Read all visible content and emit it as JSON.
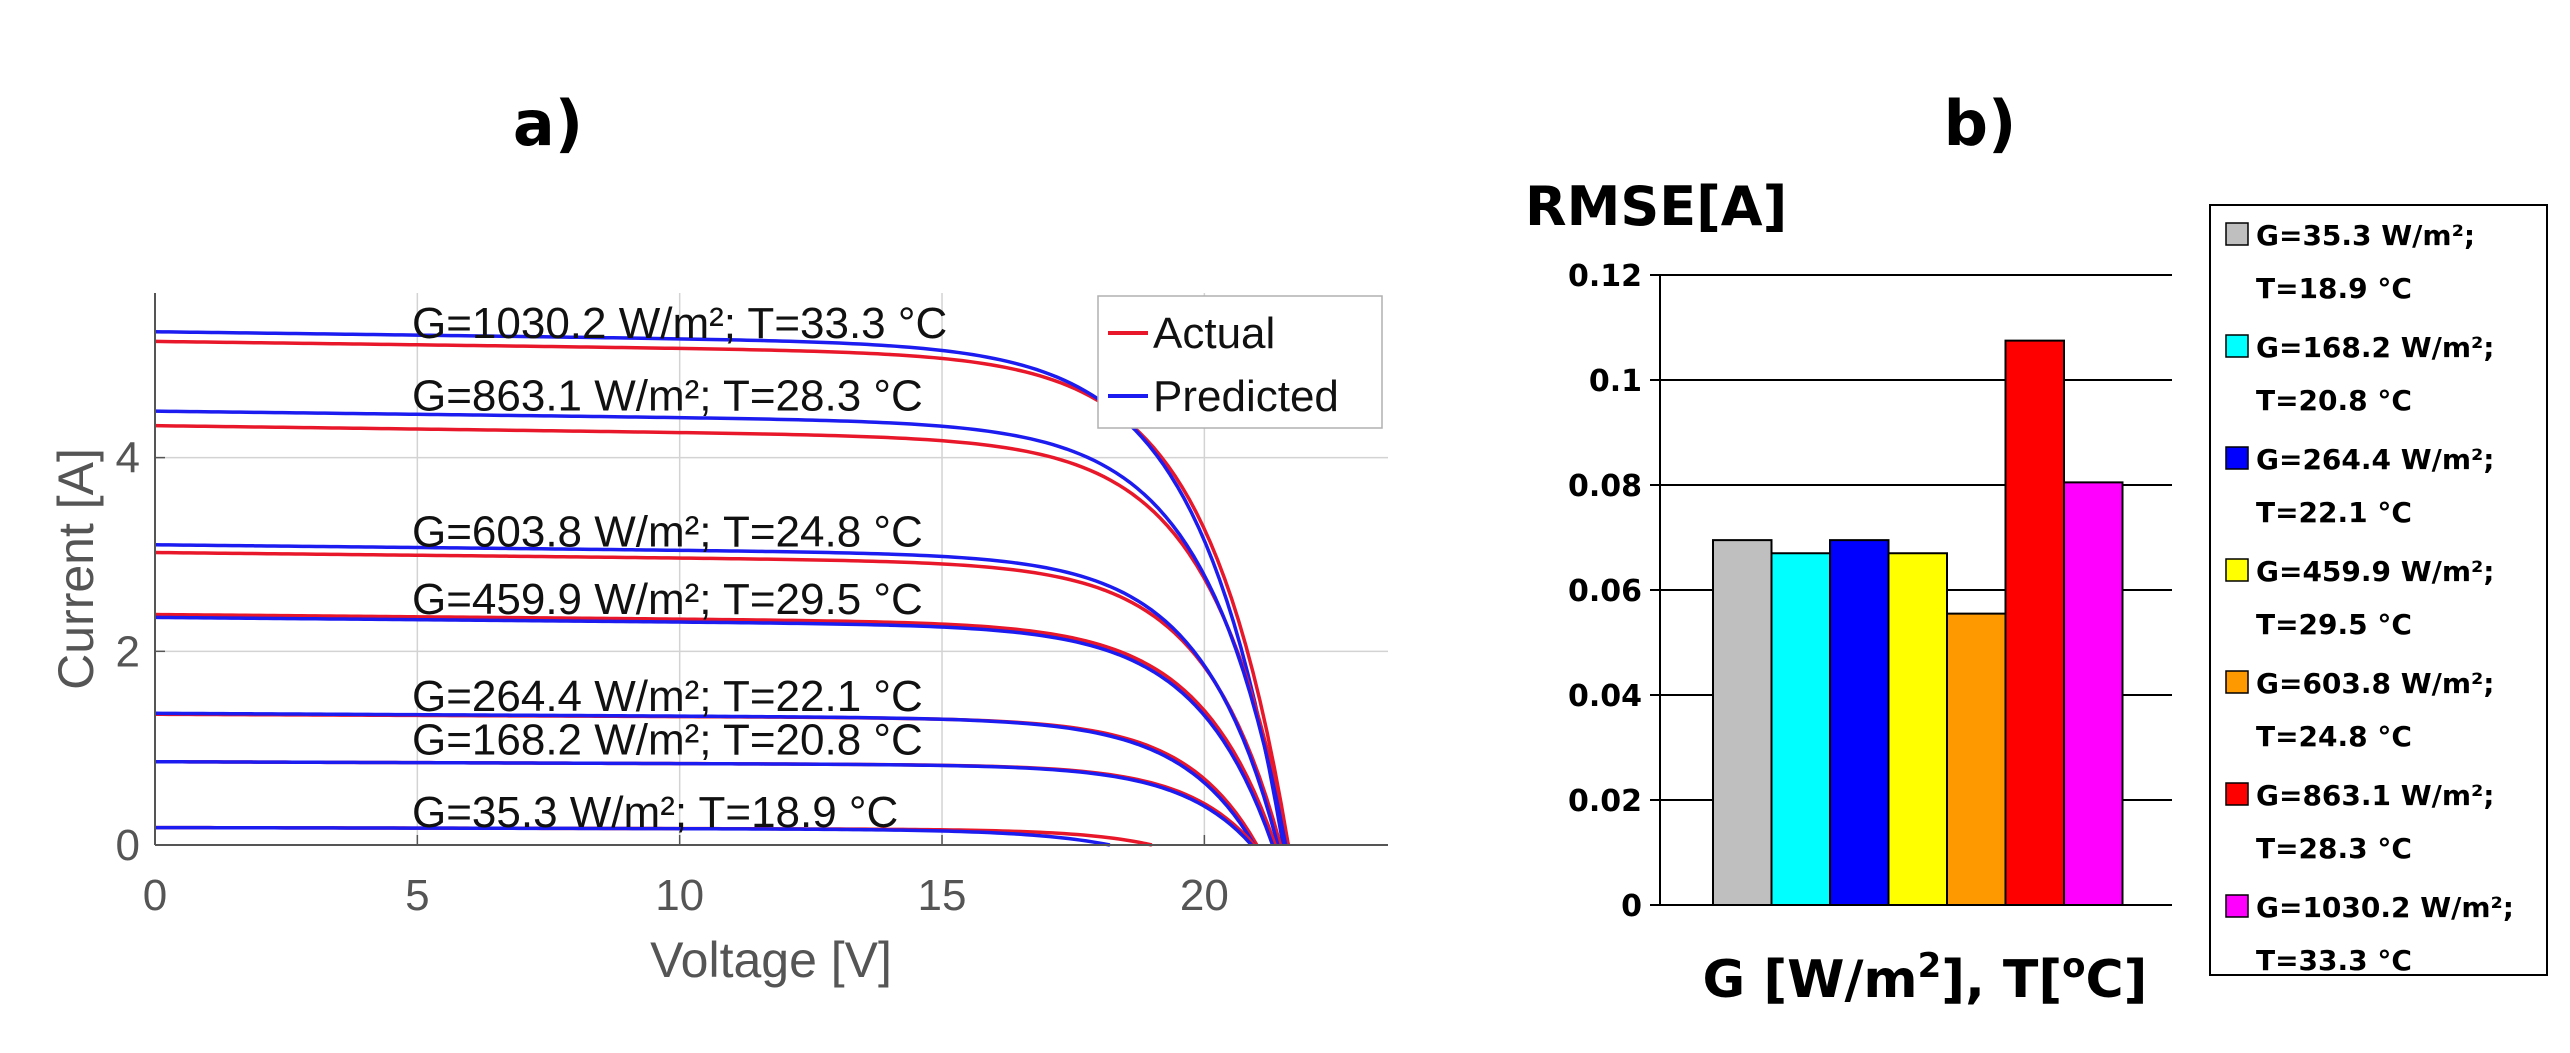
{
  "chart_data": [
    {
      "panel_label": "a)",
      "type": "line",
      "xlabel": "Voltage [V]",
      "ylabel": "Current [A]",
      "xlim": [
        0,
        23.5
      ],
      "ylim": [
        0,
        5.7
      ],
      "x_ticks": [
        "0",
        "5",
        "10",
        "15",
        "20"
      ],
      "x_tick_values": [
        0,
        5,
        10,
        15,
        20
      ],
      "y_ticks": [
        "0",
        "2",
        "4"
      ],
      "y_tick_values": [
        0,
        2,
        4
      ],
      "grid": true,
      "legend": {
        "position": "top-right",
        "entries": [
          "Actual",
          "Predicted"
        ],
        "colors": [
          "#e8182a",
          "#1c1cf0"
        ]
      },
      "curve_labels": [
        "G=1030.2 W/m²; T=33.3 °C",
        "G=863.1 W/m²; T=28.3 °C",
        "G=603.8 W/m²; T=24.8 °C",
        "G=459.9 W/m²; T=29.5 °C",
        "G=264.4 W/m²; T=22.1 °C",
        "G=168.2 W/m²; T=20.8 °C",
        "G=35.3 W/m²; T=18.9 °C"
      ],
      "curve_label_y": [
        5.4,
        4.65,
        3.25,
        2.55,
        1.55,
        1.1,
        0.35
      ],
      "series": [
        {
          "name": "G=1030.2 W/m²; T=33.3 °C",
          "actual": {
            "isc": 5.2,
            "voc": 21.6,
            "slope": 0.15,
            "knee": 1.55
          },
          "predicted": {
            "isc": 5.3,
            "voc": 21.5,
            "slope": 0.15,
            "knee": 1.6
          }
        },
        {
          "name": "G=863.1 W/m²; T=28.3 °C",
          "actual": {
            "isc": 4.33,
            "voc": 21.6,
            "slope": 0.15,
            "knee": 1.5
          },
          "predicted": {
            "isc": 4.48,
            "voc": 21.55,
            "slope": 0.14,
            "knee": 1.52
          }
        },
        {
          "name": "G=603.8 W/m²; T=24.8 °C",
          "actual": {
            "isc": 3.02,
            "voc": 21.45,
            "slope": 0.12,
            "knee": 1.45
          },
          "predicted": {
            "isc": 3.1,
            "voc": 21.4,
            "slope": 0.12,
            "knee": 1.45
          }
        },
        {
          "name": "G=459.9 W/m²; T=29.5 °C",
          "actual": {
            "isc": 2.38,
            "voc": 21.35,
            "slope": 0.1,
            "knee": 1.45
          },
          "predicted": {
            "isc": 2.35,
            "voc": 21.3,
            "slope": 0.1,
            "knee": 1.45
          }
        },
        {
          "name": "G=264.4 W/m²; T=22.1 °C",
          "actual": {
            "isc": 1.35,
            "voc": 21.0,
            "slope": 0.05,
            "knee": 1.35
          },
          "predicted": {
            "isc": 1.36,
            "voc": 20.95,
            "slope": 0.06,
            "knee": 1.4
          }
        },
        {
          "name": "G=168.2 W/m²; T=20.8 °C",
          "actual": {
            "isc": 0.86,
            "voc": 20.95,
            "slope": 0.04,
            "knee": 1.3
          },
          "predicted": {
            "isc": 0.86,
            "voc": 20.9,
            "slope": 0.04,
            "knee": 1.35
          }
        },
        {
          "name": "G=35.3 W/m²; T=18.9 °C",
          "actual": {
            "isc": 0.18,
            "voc": 19.0,
            "slope": 0.02,
            "knee": 1.3
          },
          "predicted": {
            "isc": 0.18,
            "voc": 18.2,
            "slope": 0.02,
            "knee": 1.5
          }
        }
      ]
    },
    {
      "panel_label": "b)",
      "type": "bar",
      "title": "RMSE[A]",
      "xlabel": "G [W/m",
      "xlabel_sup1": "2",
      "xlabel_mid": "], T[",
      "xlabel_sup2": "o",
      "xlabel_end": "C]",
      "ylim": [
        0,
        0.12
      ],
      "y_ticks": [
        "0",
        "0.02",
        "0.04",
        "0.06",
        "0.08",
        "0.1",
        "0.12"
      ],
      "y_tick_values": [
        0,
        0.02,
        0.04,
        0.06,
        0.08,
        0.1,
        0.12
      ],
      "grid": true,
      "categories": [
        "G=35.3 W/m²; T=18.9 °C",
        "G=168.2 W/m²; T=20.8 °C",
        "G=264.4 W/m²; T=22.1 °C",
        "G=459.9 W/m²; T=29.5 °C",
        "G=603.8 W/m²; T=24.8 °C",
        "G=863.1 W/m²; T=28.3 °C",
        "G=1030.2 W/m²; T=33.3 °C"
      ],
      "values": [
        0.0695,
        0.067,
        0.0695,
        0.067,
        0.0555,
        0.1075,
        0.0805
      ],
      "colors": [
        "#bfbfbf",
        "#00ffff",
        "#0000ff",
        "#ffff00",
        "#ff9900",
        "#ff0000",
        "#ff00ff"
      ],
      "legend": {
        "position": "right",
        "entries": [
          {
            "line1": "G=35.3 W/m²;",
            "line2": "T=18.9 °C"
          },
          {
            "line1": "G=168.2 W/m²;",
            "line2": "T=20.8 °C"
          },
          {
            "line1": "G=264.4 W/m²;",
            "line2": "T=22.1 °C"
          },
          {
            "line1": "G=459.9 W/m²;",
            "line2": "T=29.5 °C"
          },
          {
            "line1": "G=603.8 W/m²;",
            "line2": "T=24.8 °C"
          },
          {
            "line1": "G=863.1 W/m²;",
            "line2": "T=28.3 °C"
          },
          {
            "line1": "G=1030.2 W/m²;",
            "line2": "T=33.3 °C"
          }
        ]
      }
    }
  ]
}
